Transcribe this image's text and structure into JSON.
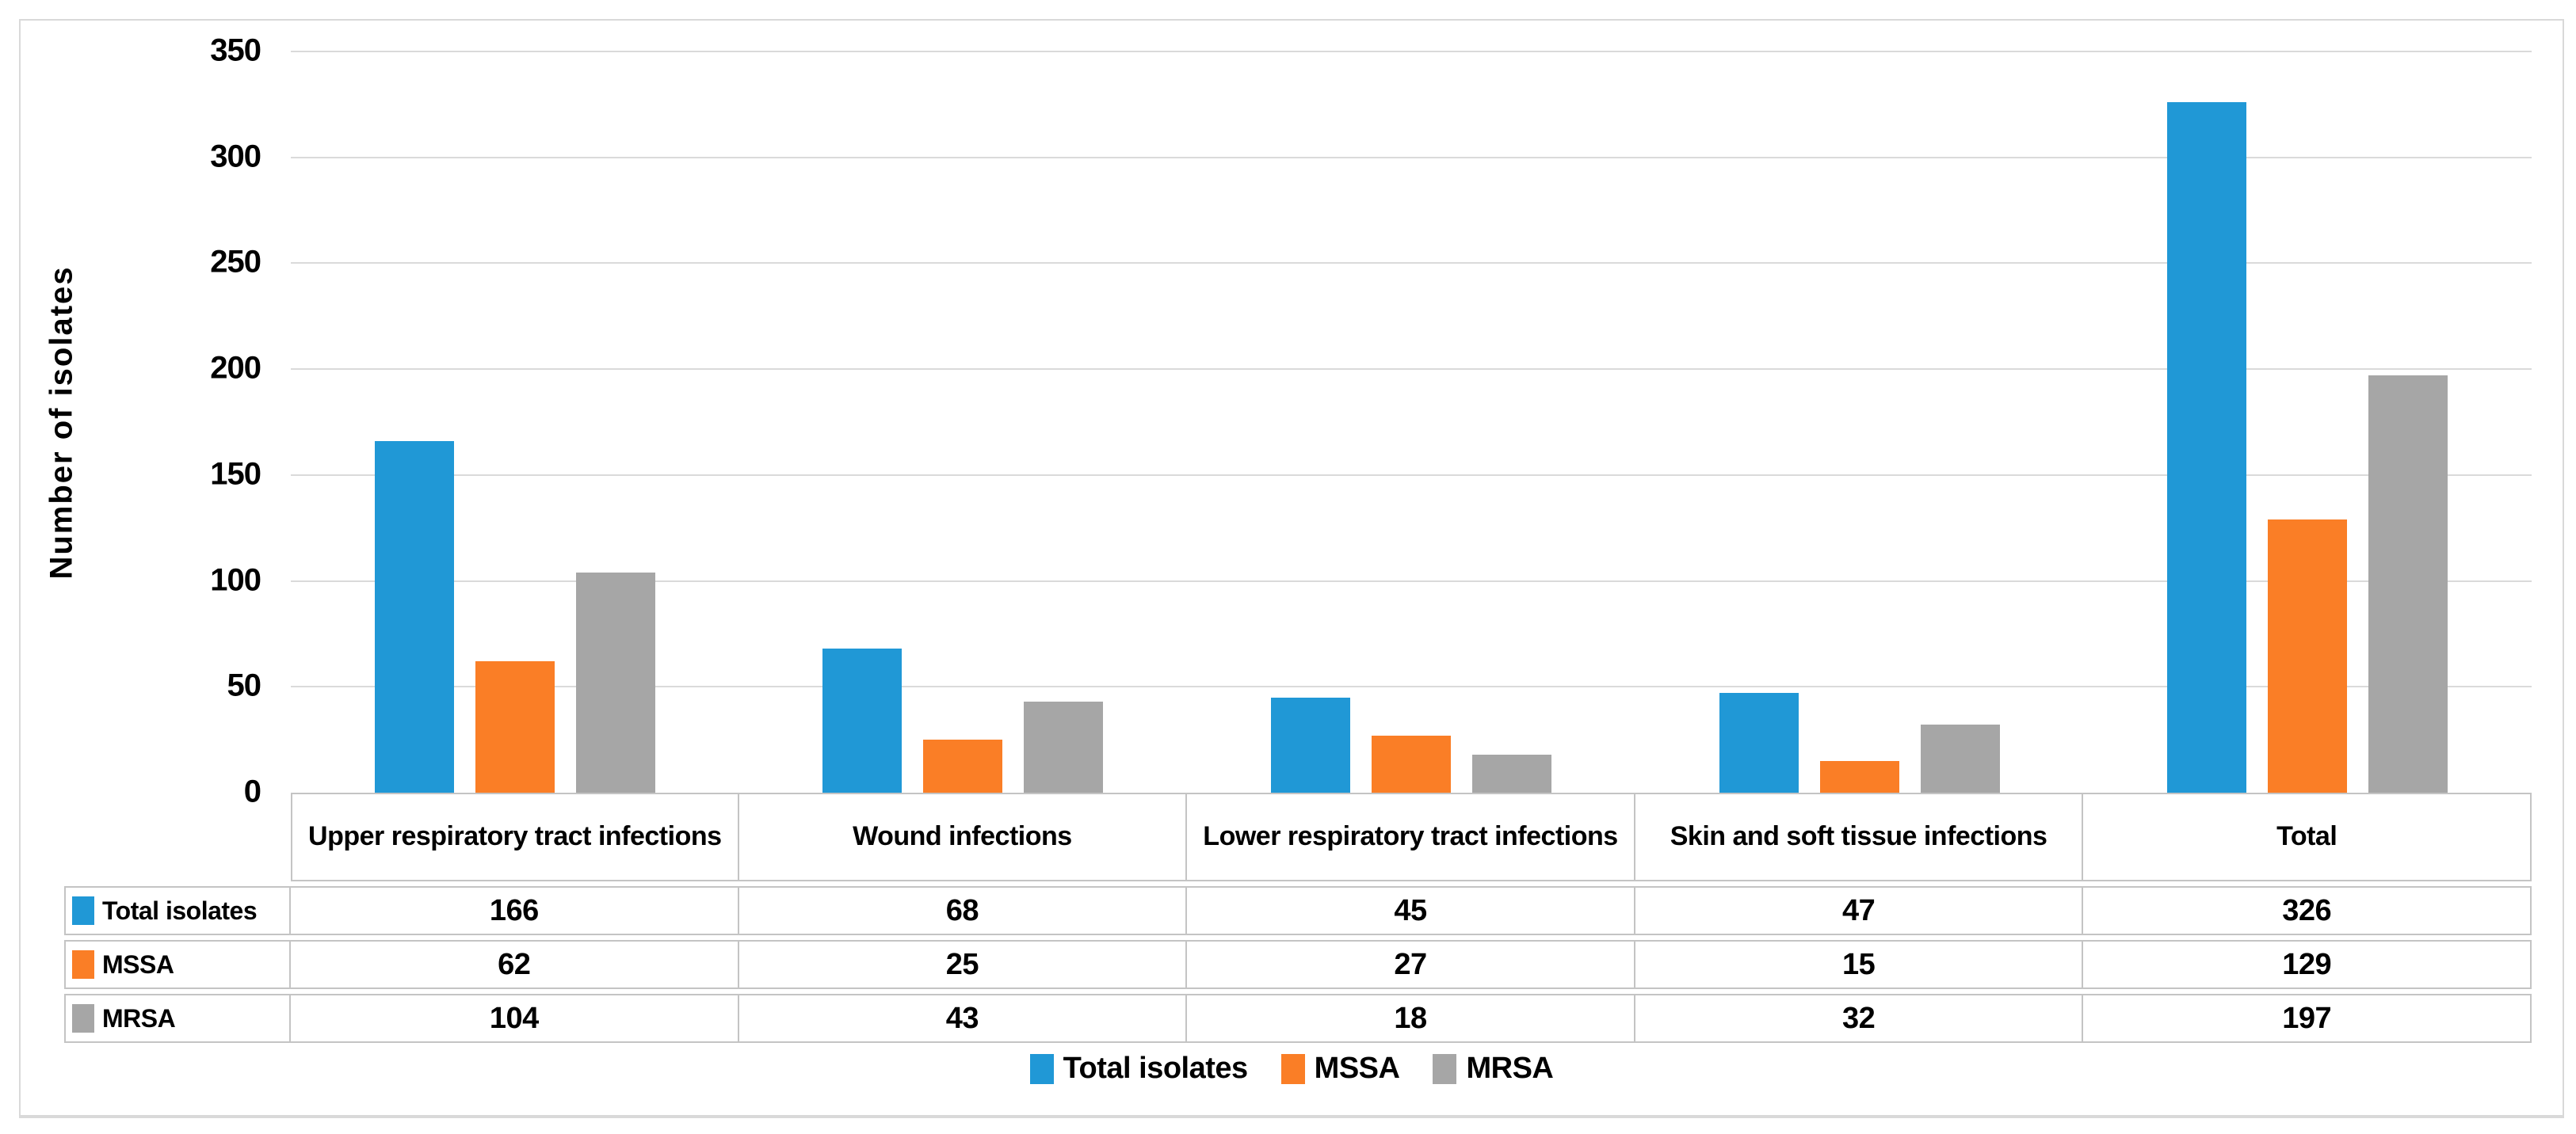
{
  "chart_data": {
    "type": "bar",
    "title": "",
    "xlabel": "",
    "ylabel": "Number of isolates",
    "ylim": [
      0,
      350
    ],
    "yticks": [
      0,
      50,
      100,
      150,
      200,
      250,
      300,
      350
    ],
    "grid": true,
    "legend_position": "bottom",
    "data_table_shown": true,
    "categories": [
      "Upper respiratory tract infections",
      "Wound infections",
      "Lower respiratory tract infections",
      "Skin and soft tissue infections",
      "Total"
    ],
    "series": [
      {
        "name": "Total isolates",
        "color": "#2098D6",
        "values": [
          166,
          68,
          45,
          47,
          326
        ]
      },
      {
        "name": "MSSA",
        "color": "#FA7E26",
        "values": [
          62,
          25,
          27,
          15,
          129
        ]
      },
      {
        "name": "MRSA",
        "color": "#A6A6A6",
        "values": [
          104,
          43,
          18,
          32,
          197
        ]
      }
    ]
  },
  "colors": {
    "gridline": "#DADADA",
    "table_border": "#C4C4C4",
    "figure_border": "#D9D9D9",
    "text": "#000000"
  }
}
